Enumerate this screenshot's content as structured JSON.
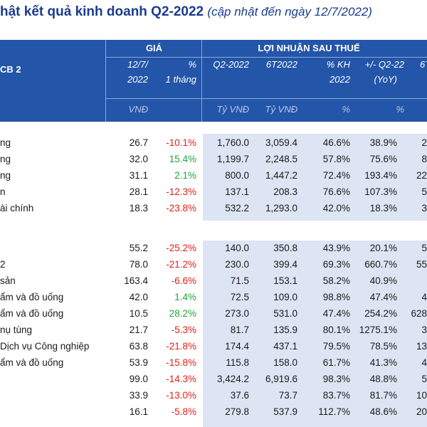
{
  "title": {
    "main": "hật kết quả kinh doanh Q2-2022",
    "note": "(cập nhật đến ngày 12/7/2022)"
  },
  "header": {
    "left_label": "CB 2",
    "group_price": "GIÁ",
    "group_profit": "LỢI NHUẬN SAU THUẾ",
    "col_date_1": "12/7/",
    "col_date_2": "2022",
    "col_pct_1": "%",
    "col_pct_2": "1 tháng",
    "col_q2": "Q2-2022",
    "col_6t": "6T2022",
    "col_kh_1": "% KH",
    "col_kh_2": "2022",
    "col_yoy_1": "+/- Q2-22",
    "col_yoy_2": "(YoY)",
    "col_last": "6T",
    "unit_price": "VNĐ",
    "unit_q2": "Tỷ VNĐ",
    "unit_6t": "Tỷ VNĐ",
    "unit_kh": "%",
    "unit_yoy": "%"
  },
  "rows": [
    {
      "name": "ng",
      "price": "26.7",
      "pct": "-10.1%",
      "q2": "1,760.0",
      "h1": "3,059.4",
      "kh": "46.6%",
      "yoy": "38.9%",
      "last": "2"
    },
    {
      "name": "ng",
      "price": "32.0",
      "pct": "15.4%",
      "q2": "1,199.7",
      "h1": "2,248.5",
      "kh": "57.8%",
      "yoy": "75.6%",
      "last": "8"
    },
    {
      "name": "ng",
      "price": "31.1",
      "pct": "2.1%",
      "q2": "800.0",
      "h1": "1,447.2",
      "kh": "72.4%",
      "yoy": "193.4%",
      "last": "22"
    },
    {
      "name": "n",
      "price": "28.1",
      "pct": "-12.3%",
      "q2": "137.1",
      "h1": "208.3",
      "kh": "76.6%",
      "yoy": "107.3%",
      "last": "5"
    },
    {
      "name": "ài chính",
      "price": "18.3",
      "pct": "-23.8%",
      "q2": "532.2",
      "h1": "1,293.0",
      "kh": "42.0%",
      "yoy": "18.3%",
      "last": "3"
    },
    {
      "name": "",
      "price": "55.2",
      "pct": "-25.2%",
      "q2": "140.0",
      "h1": "350.8",
      "kh": "43.9%",
      "yoy": "20.1%",
      "last": "5"
    },
    {
      "name": "2",
      "price": "78.0",
      "pct": "-21.2%",
      "q2": "230.0",
      "h1": "399.4",
      "kh": "69.3%",
      "yoy": "660.7%",
      "last": "55"
    },
    {
      "name": "sản",
      "price": "163.4",
      "pct": "-6.6%",
      "q2": "71.5",
      "h1": "153.1",
      "kh": "58.2%",
      "yoy": "40.9%",
      "last": ""
    },
    {
      "name": "ẩm và đồ uống",
      "price": "42.0",
      "pct": "1.4%",
      "q2": "72.5",
      "h1": "109.0",
      "kh": "98.8%",
      "yoy": "47.4%",
      "last": "4"
    },
    {
      "name": "ẩm và đồ uống",
      "price": "10.5",
      "pct": "28.2%",
      "q2": "273.0",
      "h1": "531.0",
      "kh": "47.4%",
      "yoy": "254.2%",
      "last": "628"
    },
    {
      "name": "nụ tùng",
      "price": "21.7",
      "pct": "-5.3%",
      "q2": "81.7",
      "h1": "135.9",
      "kh": "80.1%",
      "yoy": "1275.1%",
      "last": "3"
    },
    {
      "name": "Dịch vụ Công nghiệp",
      "price": "63.8",
      "pct": "-21.8%",
      "q2": "174.4",
      "h1": "437.1",
      "kh": "79.5%",
      "yoy": "78.5%",
      "last": "13"
    },
    {
      "name": "ẩm và đồ uống",
      "price": "53.9",
      "pct": "-15.8%",
      "q2": "115.8",
      "h1": "158.0",
      "kh": "61.7%",
      "yoy": "41.3%",
      "last": "4"
    },
    {
      "name": "",
      "price": "99.0",
      "pct": "-14.3%",
      "q2": "3,424.2",
      "h1": "6,919.6",
      "kh": "98.3%",
      "yoy": "48.8%",
      "last": "5"
    },
    {
      "name": "",
      "price": "33.9",
      "pct": "-13.0%",
      "q2": "37.6",
      "h1": "73.7",
      "kh": "83.7%",
      "yoy": "81.7%",
      "last": "10"
    },
    {
      "name": "",
      "price": "16.1",
      "pct": "-5.8%",
      "q2": "279.8",
      "h1": "537.9",
      "kh": "112.7%",
      "yoy": "48.6%",
      "last": "20"
    }
  ]
}
